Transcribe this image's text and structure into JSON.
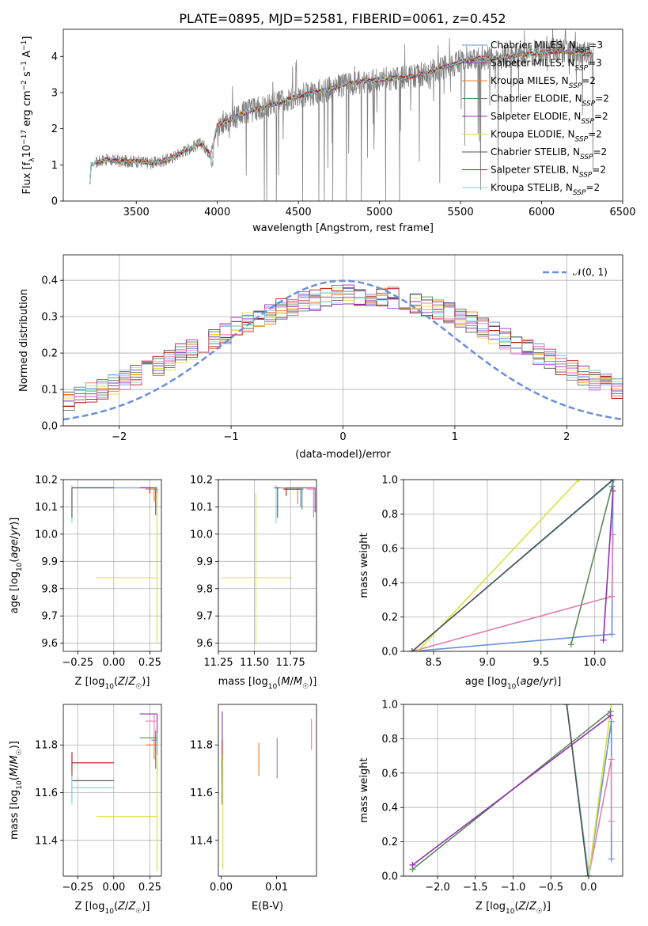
{
  "figure": {
    "title": "PLATE=0895, MJD=52581, FIBERID=0061, z=0.452"
  },
  "colors": [
    "#6a8fd8",
    "#9040c0",
    "#f07820",
    "#5a8a5a",
    "#9030b0",
    "#d8e040",
    "#505050",
    "#b01818",
    "#88d0d8"
  ],
  "color_pink": "#e080b0",
  "chart_data": [
    {
      "id": "spectrum",
      "type": "line",
      "xlabel": "wavelength [Angstrom, rest frame]",
      "ylabel": "Flux [f_λ 10^-17 erg cm^-2 s^-1 A^-1]",
      "xlim": [
        3050,
        6500
      ],
      "ylim": [
        0,
        4.75
      ],
      "xticks": [
        3500,
        4000,
        4500,
        5000,
        5500,
        6000,
        6500
      ],
      "yticks": [
        0,
        1,
        2,
        3,
        4
      ],
      "grid": false,
      "legend_position": "top-right",
      "legend": [
        {
          "name": "Chabrier MILES",
          "nssp": "3"
        },
        {
          "name": "Salpeter MILES",
          "nssp": "3"
        },
        {
          "name": "Kroupa MILES",
          "nssp": "2"
        },
        {
          "name": "Chabrier ELODIE",
          "nssp": "2"
        },
        {
          "name": "Salpeter ELODIE",
          "nssp": "2"
        },
        {
          "name": "Kroupa ELODIE",
          "nssp": "2"
        },
        {
          "name": "Chabrier STELIB",
          "nssp": "2"
        },
        {
          "name": "Salpeter STELIB",
          "nssp": "2"
        },
        {
          "name": "Kroupa STELIB",
          "nssp": "2"
        }
      ],
      "continuum": [
        [
          3210,
          0.0
        ],
        [
          3220,
          1.0
        ],
        [
          3300,
          1.15
        ],
        [
          3400,
          1.1
        ],
        [
          3500,
          1.1
        ],
        [
          3600,
          1.05
        ],
        [
          3700,
          1.15
        ],
        [
          3800,
          1.4
        ],
        [
          3900,
          1.6
        ],
        [
          3960,
          1.3
        ],
        [
          4000,
          2.1
        ],
        [
          4100,
          2.3
        ],
        [
          4200,
          2.5
        ],
        [
          4300,
          2.6
        ],
        [
          4400,
          2.75
        ],
        [
          4500,
          2.9
        ],
        [
          4600,
          3.0
        ],
        [
          4700,
          3.1
        ],
        [
          4800,
          3.25
        ],
        [
          4900,
          3.3
        ],
        [
          5000,
          3.35
        ],
        [
          5100,
          3.4
        ],
        [
          5200,
          3.45
        ],
        [
          5300,
          3.55
        ],
        [
          5400,
          3.7
        ],
        [
          5500,
          3.85
        ],
        [
          5600,
          3.95
        ],
        [
          5700,
          3.95
        ],
        [
          5800,
          4.0
        ],
        [
          5900,
          4.05
        ],
        [
          6000,
          4.1
        ],
        [
          6100,
          4.15
        ],
        [
          6200,
          4.1
        ],
        [
          6300,
          4.05
        ]
      ],
      "noisy_data_range": [
        3250,
        6320
      ]
    },
    {
      "id": "residuals",
      "type": "histogram",
      "xlabel": "(data-model)/error",
      "ylabel": "Normed distribution",
      "xlim": [
        -2.5,
        2.5
      ],
      "ylim": [
        0,
        0.47
      ],
      "xticks": [
        -2,
        -1,
        0,
        1,
        2
      ],
      "yticks": [
        0.0,
        0.1,
        0.2,
        0.3,
        0.4
      ],
      "grid": true,
      "legend_position": "top-right",
      "legend": [
        "𝒩(0, 1)"
      ],
      "bin_width": 0.1,
      "bin_start": -2.5,
      "reference_curve": "N(0,1)"
    },
    {
      "id": "age-vs-Z",
      "type": "errorbar",
      "xlabel": "Z [log10(Z/Z☉)]",
      "ylabel": "age  [log10(age/yr)]",
      "xlim": [
        -0.35,
        0.33
      ],
      "ylim": [
        9.57,
        10.2
      ],
      "xticks": [
        -0.25,
        0.0,
        0.25
      ],
      "yticks": [
        9.6,
        9.7,
        9.8,
        9.9,
        10.0,
        10.1,
        10.2
      ],
      "grid": true,
      "points": [
        {
          "c": 0,
          "x": 0.3,
          "y": 10.17,
          "xe": [
            -0.29,
            0.3
          ],
          "ye": [
            10.1,
            10.17
          ]
        },
        {
          "c": 7,
          "x": 0.25,
          "y": 10.17,
          "xe": [
            0.18,
            0.3
          ],
          "ye": [
            10.15,
            10.17
          ]
        },
        {
          "c": 4,
          "x": 0.29,
          "y": 10.17,
          "xe": [
            0.2,
            0.3
          ],
          "ye": [
            10.07,
            10.17
          ]
        },
        {
          "c": 3,
          "x": 0.29,
          "y": 10.17,
          "xe": [
            0.25,
            0.3
          ],
          "ye": [
            10.09,
            10.17
          ]
        },
        {
          "c": 8,
          "x": -0.29,
          "y": 10.17,
          "xe": [
            -0.29,
            0.0
          ],
          "ye": [
            10.04,
            10.18
          ]
        },
        {
          "c": 6,
          "x": -0.29,
          "y": 10.17,
          "xe": [
            -0.29,
            0.0
          ],
          "ye": [
            10.06,
            10.17
          ]
        },
        {
          "c": 5,
          "x": 0.3,
          "y": 9.84,
          "xe": [
            -0.12,
            0.3
          ],
          "ye": [
            9.6,
            10.15
          ]
        },
        {
          "c": 2,
          "x": 0.28,
          "y": 10.165,
          "xe": [
            0.22,
            0.3
          ],
          "ye": [
            10.12,
            10.17
          ]
        }
      ]
    },
    {
      "id": "age-vs-mass",
      "type": "errorbar",
      "xlabel": "mass [log10(M/M☉)]",
      "ylabel": "",
      "xlim": [
        11.25,
        11.93
      ],
      "ylim": [
        9.57,
        10.2
      ],
      "xticks": [
        11.25,
        11.5,
        11.75
      ],
      "yticks": [
        9.6,
        9.7,
        9.8,
        9.9,
        10.0,
        10.1,
        10.2
      ],
      "grid": true,
      "points": [
        {
          "c": 4,
          "x": 11.92,
          "y": 10.17,
          "xe": [
            11.84,
            11.92
          ],
          "ye": [
            10.08,
            10.17
          ]
        },
        {
          "c": 9,
          "x": 11.91,
          "y": 10.165,
          "xe": [
            11.86,
            11.93
          ],
          "ye": [
            10.06,
            10.17
          ]
        },
        {
          "c": 0,
          "x": 11.82,
          "y": 10.17,
          "xe": [
            11.68,
            11.85
          ],
          "ye": [
            10.1,
            10.17
          ]
        },
        {
          "c": 2,
          "x": 11.8,
          "y": 10.165,
          "xe": [
            11.72,
            11.84
          ],
          "ye": [
            10.11,
            10.17
          ]
        },
        {
          "c": 3,
          "x": 11.83,
          "y": 10.17,
          "xe": [
            11.72,
            11.86
          ],
          "ye": [
            10.09,
            10.17
          ]
        },
        {
          "c": 7,
          "x": 11.72,
          "y": 10.165,
          "xe": [
            11.7,
            11.82
          ],
          "ye": [
            10.14,
            10.17
          ]
        },
        {
          "c": 8,
          "x": 11.65,
          "y": 10.17,
          "xe": [
            11.63,
            11.67
          ],
          "ye": [
            10.04,
            10.18
          ]
        },
        {
          "c": 6,
          "x": 11.66,
          "y": 10.17,
          "xe": [
            11.64,
            11.68
          ],
          "ye": [
            10.06,
            10.17
          ]
        },
        {
          "c": 5,
          "x": 11.51,
          "y": 9.84,
          "xe": [
            11.27,
            11.76
          ],
          "ye": [
            9.6,
            10.15
          ]
        }
      ]
    },
    {
      "id": "weight-vs-age",
      "type": "line",
      "xlabel": "age  [log10(age/yr)]",
      "ylabel": "mass weight",
      "xlim": [
        8.22,
        10.26
      ],
      "ylim": [
        0,
        1
      ],
      "xticks": [
        8.5,
        9.0,
        9.5,
        10.0
      ],
      "yticks": [
        0.0,
        0.2,
        0.4,
        0.6,
        0.8,
        1.0
      ],
      "grid": true,
      "series": [
        {
          "c": 0,
          "points": [
            [
              8.3,
              0.0
            ],
            [
              10.16,
              0.1
            ],
            [
              10.17,
              1.0
            ]
          ]
        },
        {
          "c": 9,
          "points": [
            [
              8.3,
              0.0
            ],
            [
              10.16,
              0.32
            ],
            [
              10.17,
              0.68
            ]
          ]
        },
        {
          "c": 4,
          "points": [
            [
              10.08,
              0.065
            ],
            [
              10.17,
              0.935
            ]
          ]
        },
        {
          "c": 3,
          "points": [
            [
              9.78,
              0.04
            ],
            [
              10.16,
              0.96
            ]
          ]
        },
        {
          "c": 5,
          "points": [
            [
              8.35,
              0.0
            ],
            [
              9.85,
              1.0
            ]
          ]
        },
        {
          "c": 8,
          "points": [
            [
              8.3,
              0.0
            ],
            [
              10.18,
              1.0
            ]
          ]
        },
        {
          "c": 6,
          "points": [
            [
              8.3,
              0.0
            ],
            [
              10.17,
              1.0
            ]
          ]
        }
      ]
    },
    {
      "id": "mass-vs-Z",
      "type": "errorbar",
      "xlabel": "Z [log10(Z/Z☉)]",
      "ylabel": "mass [log10(M/M☉)]",
      "xlim": [
        -0.35,
        0.33
      ],
      "ylim": [
        11.25,
        11.97
      ],
      "xticks": [
        -0.25,
        0.0,
        0.25
      ],
      "yticks": [
        11.4,
        11.6,
        11.8
      ],
      "grid": true,
      "points": [
        {
          "c": 4,
          "x": 0.3,
          "y": 11.93,
          "xe": [
            0.18,
            0.3
          ],
          "ye": [
            11.85,
            11.93
          ]
        },
        {
          "c": 9,
          "x": 0.28,
          "y": 11.9,
          "xe": [
            0.22,
            0.3
          ],
          "ye": [
            11.84,
            11.93
          ]
        },
        {
          "c": 3,
          "x": 0.29,
          "y": 11.83,
          "xe": [
            0.18,
            0.3
          ],
          "ye": [
            11.7,
            11.86
          ]
        },
        {
          "c": 2,
          "x": 0.28,
          "y": 11.8,
          "xe": [
            0.22,
            0.3
          ],
          "ye": [
            11.74,
            11.84
          ]
        },
        {
          "c": 0,
          "x": 0.3,
          "y": 11.82,
          "xe": [
            0.26,
            0.3
          ],
          "ye": [
            11.68,
            11.85
          ]
        },
        {
          "c": 7,
          "x": -0.29,
          "y": 11.725,
          "xe": [
            -0.29,
            0.0
          ],
          "ye": [
            11.69,
            11.77
          ]
        },
        {
          "c": 6,
          "x": -0.29,
          "y": 11.65,
          "xe": [
            -0.29,
            0.0
          ],
          "ye": [
            11.56,
            11.69
          ]
        },
        {
          "c": 8,
          "x": -0.29,
          "y": 11.62,
          "xe": [
            -0.29,
            0.0
          ],
          "ye": [
            11.55,
            11.67
          ]
        },
        {
          "c": 5,
          "x": 0.3,
          "y": 11.5,
          "xe": [
            -0.12,
            0.3
          ],
          "ye": [
            11.27,
            11.76
          ]
        }
      ]
    },
    {
      "id": "mass-vs-EBV",
      "type": "errorbar",
      "xlabel": "E(B-V)",
      "ylabel": "",
      "xlim": [
        -0.0005,
        0.0172
      ],
      "ylim": [
        11.25,
        11.97
      ],
      "xticks": [
        0.0,
        0.01
      ],
      "ytick_labels_shown": [
        11.4,
        11.6,
        11.8
      ],
      "grid": false,
      "points": [
        {
          "c": 4,
          "x": 0.0002,
          "ye": [
            11.7,
            11.94
          ]
        },
        {
          "c": 7,
          "x": 0.0002,
          "ye": [
            11.64,
            11.82
          ]
        },
        {
          "c": 6,
          "x": 0.0002,
          "ye": [
            11.55,
            11.74
          ]
        },
        {
          "c": 8,
          "x": 0.0003,
          "ye": [
            11.55,
            11.7
          ]
        },
        {
          "c": 5,
          "x": 0.0003,
          "ye": [
            11.28,
            11.76
          ]
        },
        {
          "c": 2,
          "x": 0.0068,
          "ye": [
            11.67,
            11.81
          ]
        },
        {
          "c": 0,
          "x": 0.0101,
          "ye": [
            11.66,
            11.83
          ]
        },
        {
          "c": 9,
          "x": 0.0163,
          "ye": [
            11.78,
            11.91
          ]
        }
      ]
    },
    {
      "id": "weight-vs-Z",
      "type": "line",
      "xlabel": "Z [log10(Z/Z☉)]",
      "ylabel": "mass weight",
      "xlim": [
        -2.45,
        0.45
      ],
      "ylim": [
        0,
        1
      ],
      "xticks": [
        -2.0,
        -1.5,
        -1.0,
        -0.5,
        0.0
      ],
      "yticks": [
        0.0,
        0.2,
        0.4,
        0.6,
        0.8,
        1.0
      ],
      "grid": true,
      "series": [
        {
          "c": 0,
          "points": [
            [
              -0.29,
              1.0
            ],
            [
              0.0,
              0.0
            ],
            [
              0.3,
              0.9
            ],
            [
              0.3,
              0.1
            ]
          ]
        },
        {
          "c": 9,
          "points": [
            [
              0.0,
              0.0
            ],
            [
              0.3,
              0.68
            ],
            [
              0.3,
              0.32
            ]
          ]
        },
        {
          "c": 5,
          "points": [
            [
              0.0,
              0.0
            ],
            [
              0.3,
              1.0
            ]
          ]
        },
        {
          "c": 3,
          "points": [
            [
              -2.33,
              0.04
            ],
            [
              0.29,
              0.96
            ]
          ]
        },
        {
          "c": 4,
          "points": [
            [
              -2.33,
              0.065
            ],
            [
              0.29,
              0.935
            ]
          ]
        },
        {
          "c": 8,
          "points": [
            [
              -0.29,
              1.0
            ],
            [
              0.0,
              0.0
            ]
          ]
        },
        {
          "c": 6,
          "points": [
            [
              -0.29,
              1.0
            ],
            [
              -0.01,
              0.0
            ]
          ]
        }
      ]
    }
  ]
}
